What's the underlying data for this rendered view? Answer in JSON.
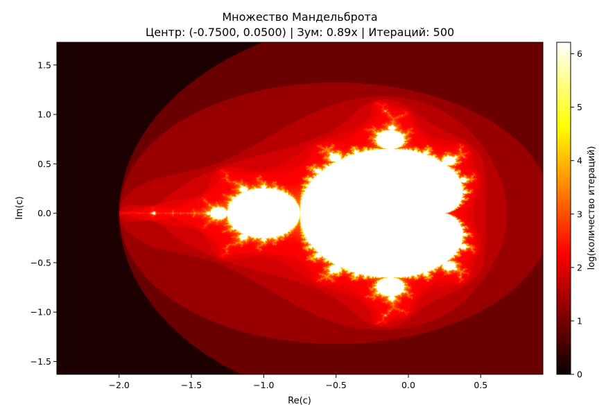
{
  "chart_data": {
    "type": "heatmap",
    "title": "Множество Мандельброта",
    "subtitle": "Центр: (-0.7500, 0.0500) | Зум: 0.89x | Итераций: 500",
    "xlabel": "Re(c)",
    "ylabel": "Im(c)",
    "xlim": [
      -2.43,
      0.93
    ],
    "ylim": [
      -1.63,
      1.73
    ],
    "center": [
      -0.75,
      0.05
    ],
    "zoom": 0.89,
    "max_iterations": 500,
    "colormap": "hot",
    "value": "log(количество итераций)",
    "x_ticks": [
      -2.0,
      -1.5,
      -1.0,
      -0.5,
      0.0,
      0.5
    ],
    "x_tick_labels": [
      "−2.0",
      "−1.5",
      "−1.0",
      "−0.5",
      "0.0",
      "0.5"
    ],
    "y_ticks": [
      1.5,
      1.0,
      0.5,
      0.0,
      -0.5,
      -1.0,
      -1.5
    ],
    "y_tick_labels": [
      "1.5",
      "1.0",
      "0.5",
      "0.0",
      "−0.5",
      "−1.0",
      "−1.5"
    ],
    "colorbar": {
      "label": "log(количество итераций)",
      "range": [
        0,
        6.2146
      ],
      "ticks": [
        0,
        1,
        2,
        3,
        4,
        5,
        6
      ],
      "tick_labels": [
        "0",
        "1",
        "2",
        "3",
        "4",
        "5",
        "6"
      ]
    }
  }
}
